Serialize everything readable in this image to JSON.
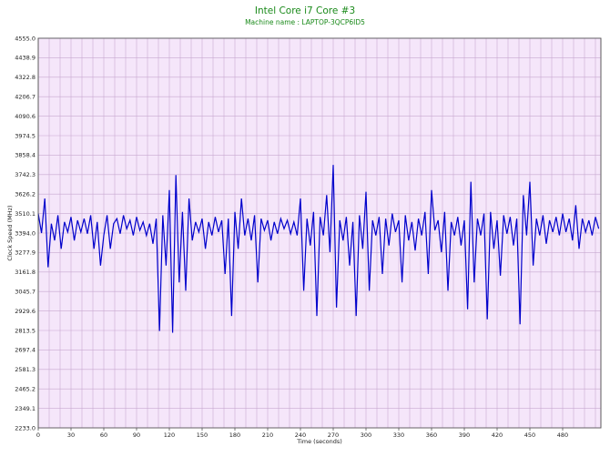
{
  "chart_data": {
    "type": "line",
    "title": "Intel Core i7 Core #3",
    "subtitle": "Machine name : LAPTOP-3QCP6ID5",
    "xlabel": "Time (seconds)",
    "ylabel": "Clock Speed (MHz)",
    "xlim": [
      0,
      515
    ],
    "ylim": [
      2233.0,
      4555.0
    ],
    "grid": true,
    "colors": {
      "line": "#0000cc",
      "plot_bg": "#f5e6fa",
      "grid": "#c8a8d0",
      "title": "#1a8a1a"
    },
    "x_ticks": [
      "0",
      "30",
      "60",
      "90",
      "120",
      "150",
      "180",
      "210",
      "240",
      "270",
      "300",
      "330",
      "360",
      "390",
      "420",
      "450",
      "480"
    ],
    "y_ticks": [
      "2233.0",
      "2349.1",
      "2465.2",
      "2581.3",
      "2697.4",
      "2813.5",
      "2929.6",
      "3045.7",
      "3161.8",
      "3277.9",
      "3394.0",
      "3510.1",
      "3626.2",
      "3742.3",
      "3858.4",
      "3974.5",
      "4090.6",
      "4206.7",
      "4322.8",
      "4438.9",
      "4555.0"
    ],
    "series": [
      {
        "x": [
          0,
          3,
          6,
          9,
          12,
          15,
          18,
          21,
          24,
          27,
          30,
          33,
          36,
          39,
          42,
          45,
          48,
          51,
          54,
          57,
          60,
          63,
          66,
          69,
          72,
          75,
          78,
          81,
          84,
          87,
          90,
          93,
          96,
          99,
          102,
          105,
          108,
          111,
          114,
          117,
          120,
          123,
          126,
          129,
          132,
          135,
          138,
          141,
          144,
          147,
          150,
          153,
          156,
          159,
          162,
          165,
          168,
          171,
          174,
          177,
          180,
          183,
          186,
          189,
          192,
          195,
          198,
          201,
          204,
          207,
          210,
          213,
          216,
          219,
          222,
          225,
          228,
          231,
          234,
          237,
          240,
          243,
          246,
          249,
          252,
          255,
          258,
          261,
          264,
          267,
          270,
          273,
          276,
          279,
          282,
          285,
          288,
          291,
          294,
          297,
          300,
          303,
          306,
          309,
          312,
          315,
          318,
          321,
          324,
          327,
          330,
          333,
          336,
          339,
          342,
          345,
          348,
          351,
          354,
          357,
          360,
          363,
          366,
          369,
          372,
          375,
          378,
          381,
          384,
          387,
          390,
          393,
          396,
          399,
          402,
          405,
          408,
          411,
          414,
          417,
          420,
          423,
          426,
          429,
          432,
          435,
          438,
          441,
          444,
          447,
          450,
          453,
          456,
          459,
          462,
          465,
          468,
          471,
          474,
          477,
          480,
          483,
          486,
          489,
          492,
          495,
          498,
          501,
          504,
          507,
          510,
          513
        ],
        "values": [
          3510,
          3394,
          3600,
          3190,
          3450,
          3350,
          3500,
          3300,
          3460,
          3400,
          3490,
          3350,
          3470,
          3400,
          3480,
          3390,
          3500,
          3300,
          3460,
          3200,
          3380,
          3500,
          3300,
          3450,
          3480,
          3390,
          3500,
          3420,
          3470,
          3380,
          3490,
          3410,
          3460,
          3380,
          3450,
          3330,
          3480,
          2810,
          3500,
          3200,
          3650,
          2800,
          3740,
          3100,
          3520,
          3050,
          3600,
          3350,
          3460,
          3400,
          3480,
          3300,
          3460,
          3380,
          3490,
          3400,
          3470,
          3150,
          3480,
          2900,
          3520,
          3300,
          3600,
          3380,
          3480,
          3350,
          3500,
          3100,
          3480,
          3410,
          3470,
          3350,
          3460,
          3390,
          3480,
          3420,
          3470,
          3390,
          3460,
          3380,
          3600,
          3050,
          3480,
          3320,
          3520,
          2900,
          3490,
          3380,
          3620,
          3280,
          3800,
          2950,
          3470,
          3350,
          3490,
          3200,
          3460,
          2900,
          3500,
          3300,
          3640,
          3050,
          3470,
          3380,
          3490,
          3150,
          3480,
          3320,
          3510,
          3400,
          3470,
          3100,
          3500,
          3350,
          3460,
          3290,
          3480,
          3380,
          3520,
          3150,
          3650,
          3410,
          3470,
          3280,
          3520,
          3050,
          3460,
          3380,
          3490,
          3320,
          3470,
          2940,
          3700,
          3100,
          3480,
          3380,
          3510,
          2880,
          3520,
          3300,
          3470,
          3140,
          3500,
          3390,
          3490,
          3320,
          3480,
          2850,
          3620,
          3380,
          3700,
          3200,
          3480,
          3380,
          3500,
          3330,
          3470,
          3400,
          3490,
          3380,
          3510,
          3400,
          3480,
          3350,
          3560,
          3300,
          3480,
          3400,
          3470,
          3380,
          3490,
          3420
        ]
      }
    ]
  }
}
